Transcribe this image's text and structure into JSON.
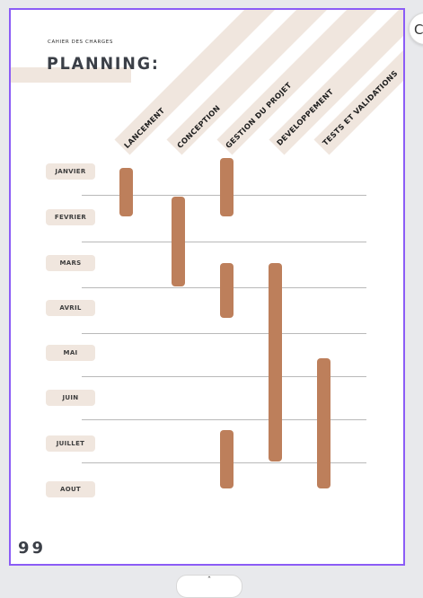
{
  "document": {
    "subtitle": "CAHIER DES CHARGES",
    "title": "PLANNING:",
    "page_number": "99"
  },
  "chart_data": {
    "type": "gantt",
    "columns": [
      "LANCEMENT",
      "CONCEPTION",
      "GESTION DU PROJET",
      "DEVELOPPEMENT",
      "TESTS ET VALIDATIONS"
    ],
    "months": [
      "JANVIER",
      "FEVRIER",
      "MARS",
      "AVRIL",
      "MAI",
      "JUIN",
      "JUILLET",
      "AOUT"
    ],
    "tasks": [
      {
        "column": "LANCEMENT",
        "start": "JANVIER",
        "end": "FEVRIER"
      },
      {
        "column": "CONCEPTION",
        "start": "FEVRIER",
        "end": "MARS"
      },
      {
        "column": "GESTION DU PROJET",
        "start": "JANVIER",
        "end": "FEVRIER"
      },
      {
        "column": "GESTION DU PROJET",
        "start": "MARS",
        "end": "AVRIL"
      },
      {
        "column": "GESTION DU PROJET",
        "start": "JUILLET",
        "end": "AOUT"
      },
      {
        "column": "DEVELOPPEMENT",
        "start": "MARS",
        "end": "JUILLET"
      },
      {
        "column": "TESTS ET VALIDATIONS",
        "start": "MAI",
        "end": "AOUT"
      }
    ]
  },
  "colors": {
    "band": "#f0e6de",
    "bar": "#bd7f5b",
    "page_border": "#8b5cf6"
  },
  "controls": {
    "side_button_glyph": "C",
    "bottom_tab_glyph": "ˆ"
  }
}
